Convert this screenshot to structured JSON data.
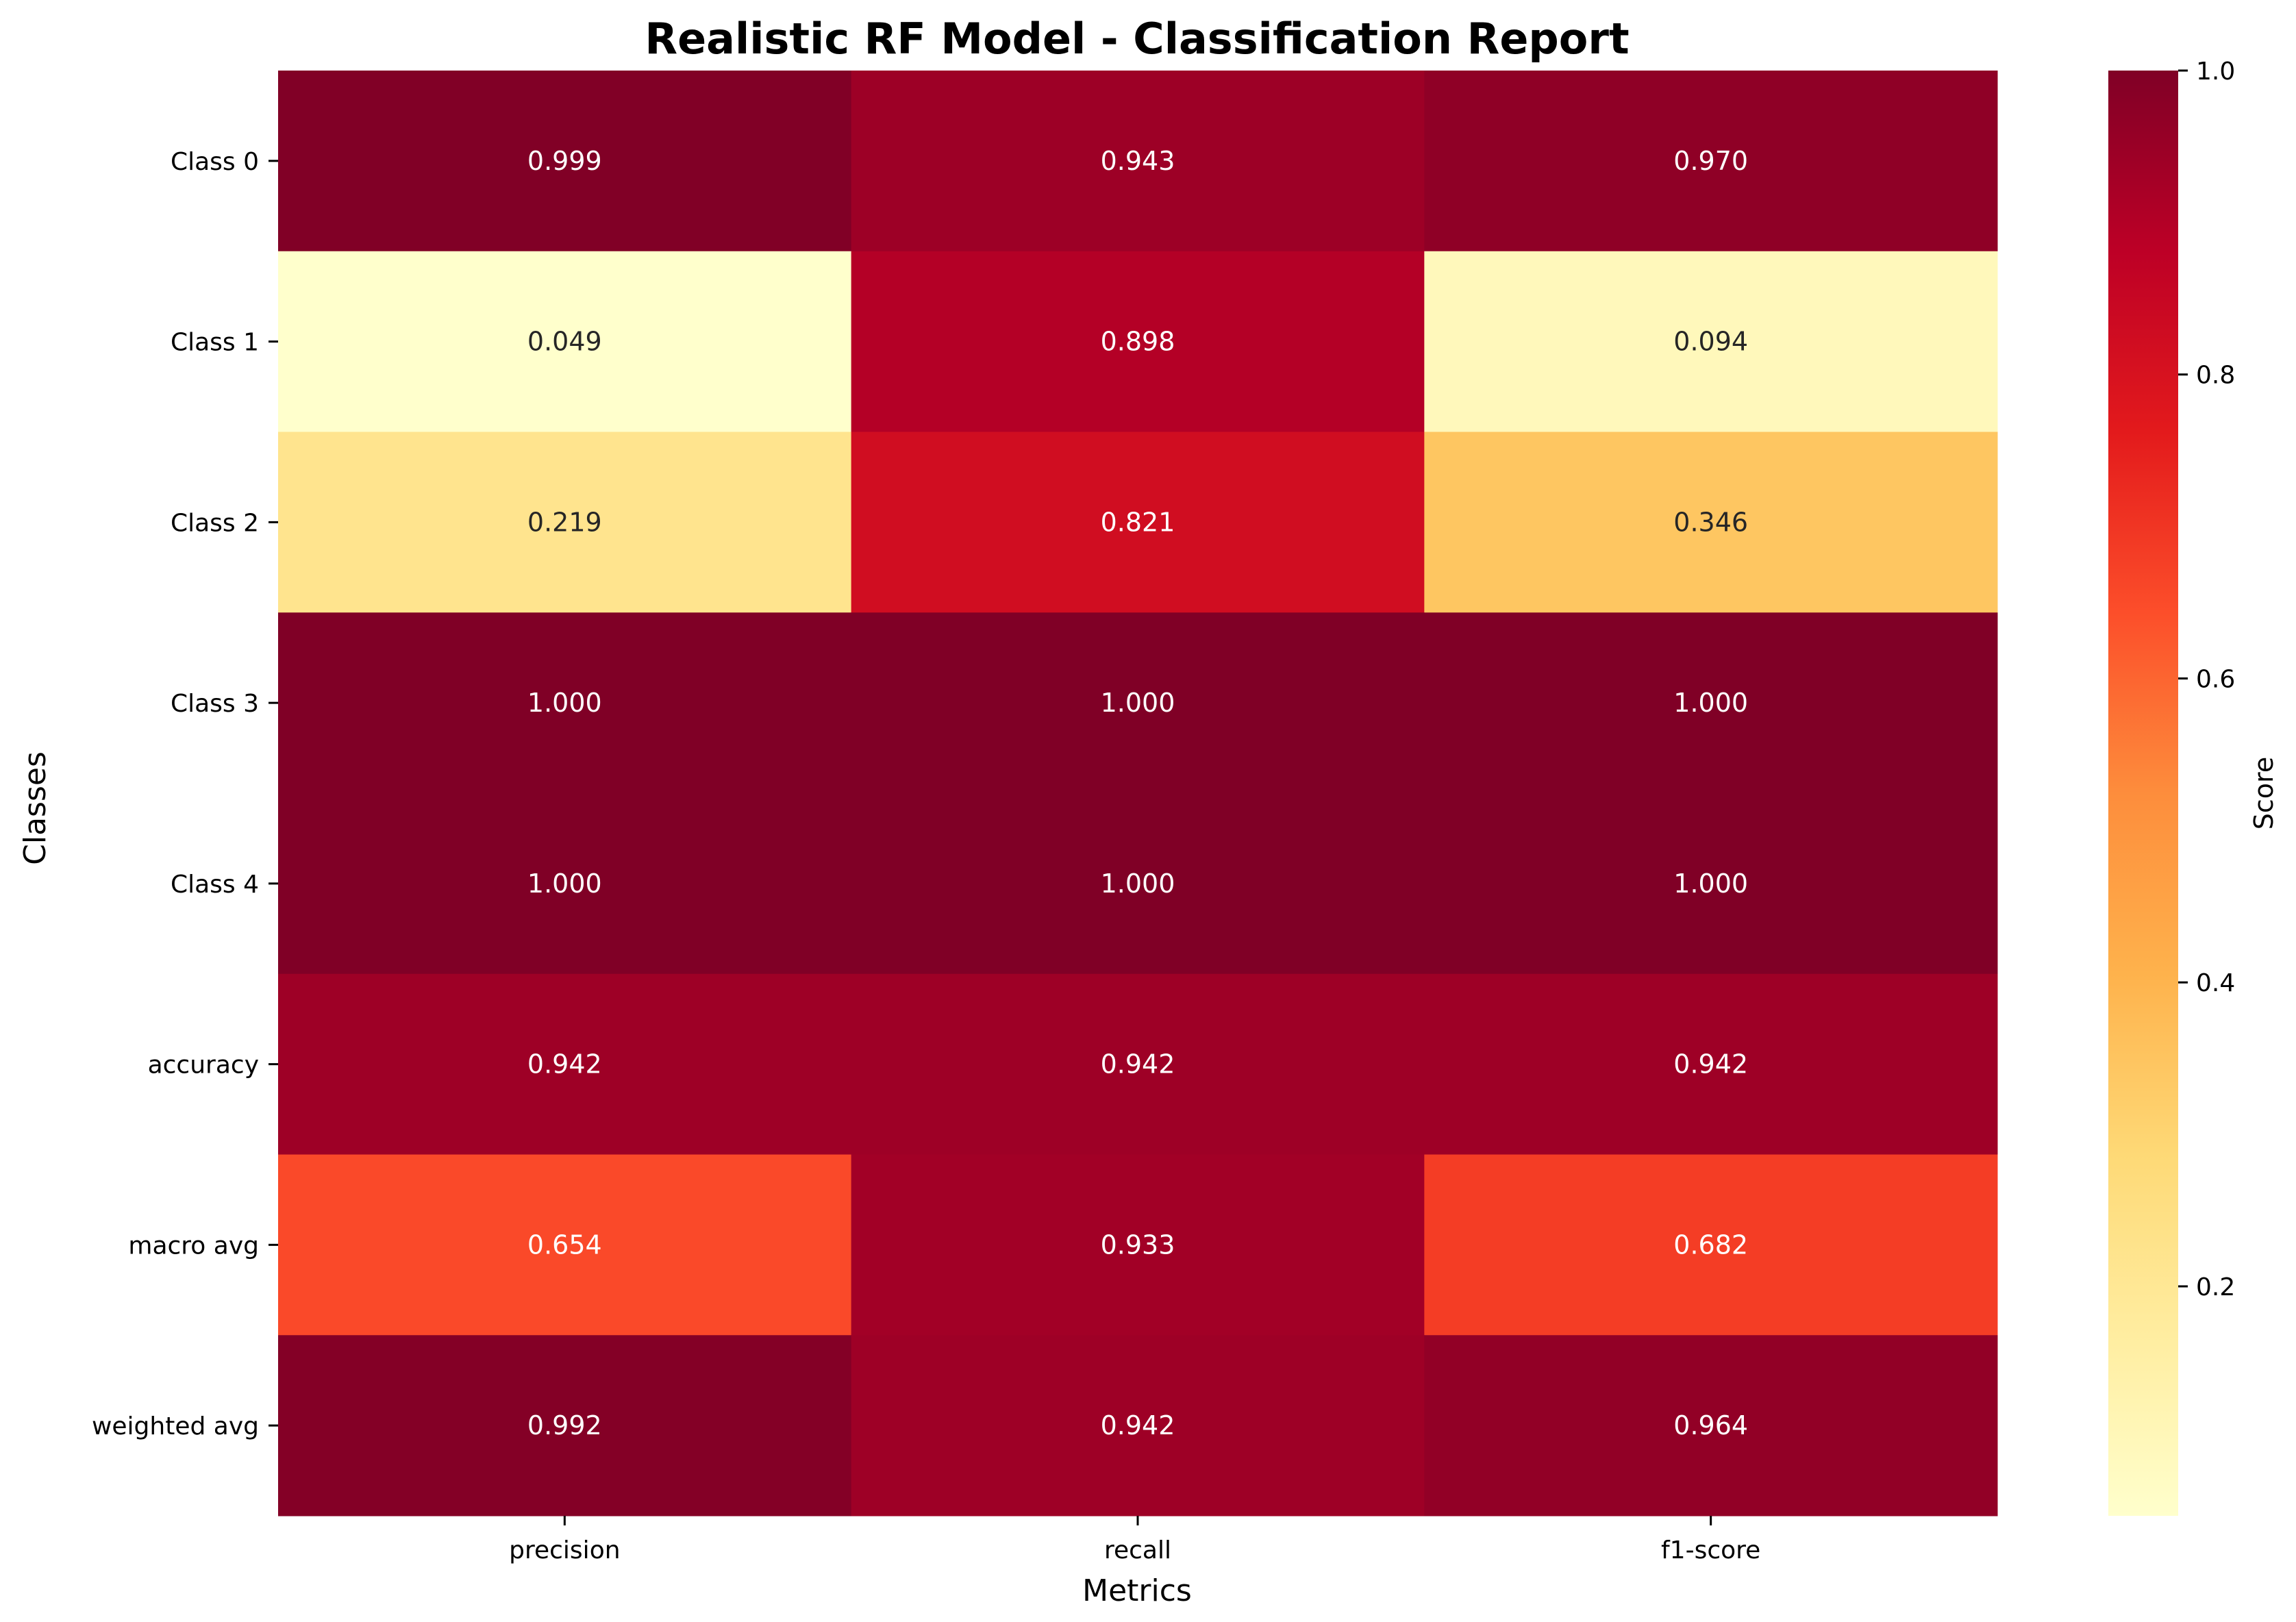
{
  "chart_data": {
    "type": "heatmap",
    "title": "Realistic RF Model - Classification Report",
    "xlabel": "Metrics",
    "ylabel": "Classes",
    "columns": [
      "precision",
      "recall",
      "f1-score"
    ],
    "rows": [
      "Class 0",
      "Class 1",
      "Class 2",
      "Class 3",
      "Class 4",
      "accuracy",
      "macro avg",
      "weighted avg"
    ],
    "values": [
      [
        0.999,
        0.943,
        0.97
      ],
      [
        0.049,
        0.898,
        0.094
      ],
      [
        0.219,
        0.821,
        0.346
      ],
      [
        1.0,
        1.0,
        1.0
      ],
      [
        1.0,
        1.0,
        1.0
      ],
      [
        0.942,
        0.942,
        0.942
      ],
      [
        0.654,
        0.933,
        0.682
      ],
      [
        0.992,
        0.942,
        0.964
      ]
    ],
    "value_format": "0.000",
    "colormap": "YlOrRd",
    "vmin": 0.049,
    "vmax": 1.0,
    "colorbar": {
      "label": "Score",
      "ticks": [
        "0.2",
        "0.4",
        "0.6",
        "0.8",
        "1.0"
      ],
      "tick_values": [
        0.2,
        0.4,
        0.6,
        0.8,
        1.0
      ]
    }
  }
}
